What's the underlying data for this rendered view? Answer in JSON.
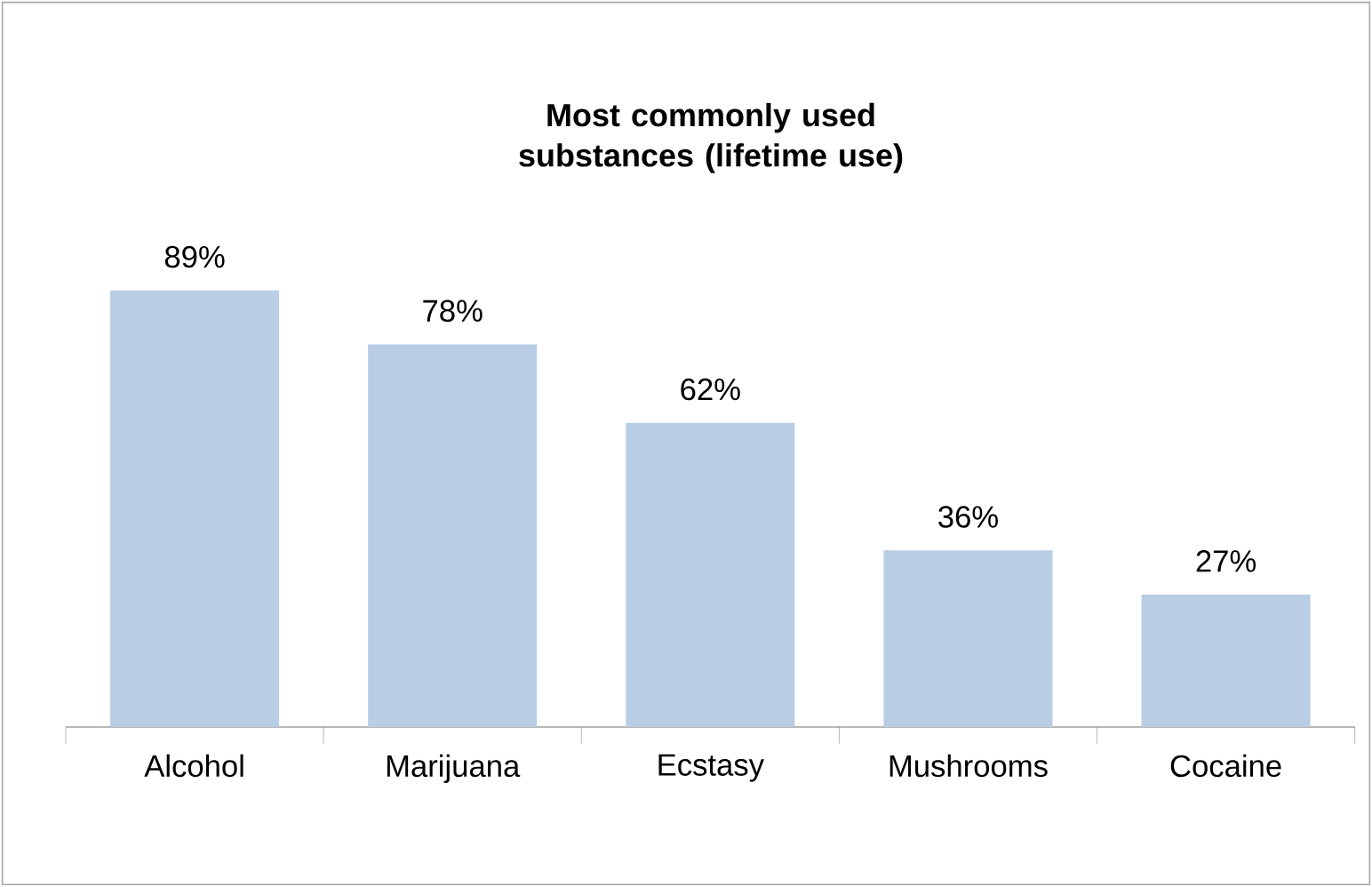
{
  "chart_data": {
    "type": "bar",
    "title": "Most commonly used substances (lifetime use)",
    "categories": [
      "Alcohol",
      "Marijuana",
      "Ecstasy",
      "Mushrooms",
      "Cocaine"
    ],
    "values": [
      89,
      78,
      62,
      36,
      27
    ],
    "value_labels": [
      "89%",
      "78%",
      "62%",
      "36%",
      "27%"
    ],
    "color": "#b9cde5"
  }
}
